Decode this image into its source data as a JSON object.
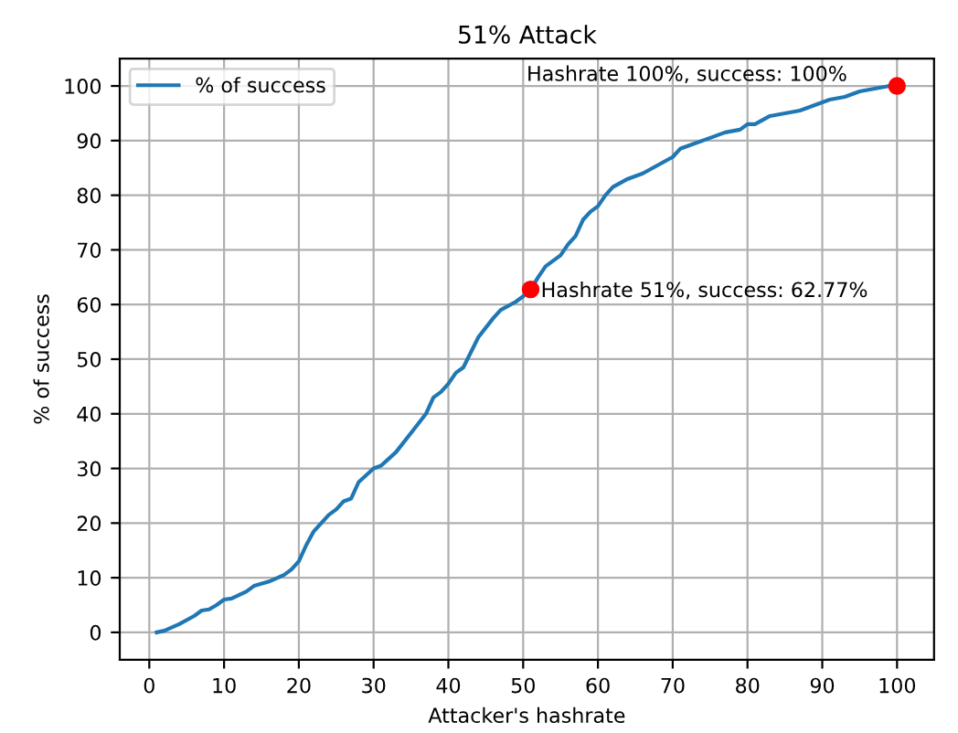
{
  "chart_data": {
    "type": "line",
    "title": "51% Attack",
    "xlabel": "Attacker's hashrate",
    "ylabel": "% of success",
    "xlim": [
      -3.95,
      104.95
    ],
    "ylim": [
      -5,
      105
    ],
    "xticks": [
      0,
      10,
      20,
      30,
      40,
      50,
      60,
      70,
      80,
      90,
      100
    ],
    "yticks": [
      0,
      10,
      20,
      30,
      40,
      50,
      60,
      70,
      80,
      90,
      100
    ],
    "grid": true,
    "legend": "top left",
    "series": [
      {
        "name": "% of success",
        "color": "#1f77b4",
        "x": [
          1,
          2,
          4,
          6,
          7,
          8,
          9,
          10,
          11,
          13,
          14,
          16,
          18,
          19,
          20,
          21,
          22,
          23,
          24,
          25,
          26,
          27,
          28,
          30,
          31,
          33,
          35,
          37,
          38,
          39,
          40,
          41,
          42,
          44,
          46,
          47,
          49,
          50,
          51,
          52,
          53,
          55,
          56,
          57,
          58,
          59,
          60,
          61,
          62,
          64,
          66,
          68,
          70,
          71,
          73,
          75,
          77,
          79,
          80,
          81,
          83,
          85,
          87,
          89,
          91,
          93,
          95,
          97,
          99,
          100
        ],
        "values": [
          0,
          0.3,
          1.5,
          3,
          4,
          4.2,
          5,
          6,
          6.2,
          7.5,
          8.5,
          9.3,
          10.5,
          11.5,
          13,
          16,
          18.5,
          20,
          21.5,
          22.5,
          24,
          24.5,
          27.5,
          30,
          30.5,
          33,
          36.5,
          40,
          43,
          44,
          45.5,
          47.5,
          48.5,
          54,
          57.5,
          59,
          60.5,
          61.5,
          62.77,
          65,
          67,
          69,
          71,
          72.5,
          75.5,
          77,
          78,
          80,
          81.5,
          83,
          84,
          85.5,
          87,
          88.5,
          89.5,
          90.5,
          91.5,
          92,
          93,
          93,
          94.5,
          95,
          95.5,
          96.5,
          97.5,
          98,
          99,
          99.5,
          100,
          100
        ]
      },
      {
        "color": "#ff0000",
        "type": "scatter",
        "x": [
          51,
          100
        ],
        "values": [
          62.77,
          100
        ]
      }
    ],
    "annotations": [
      {
        "text": "Hashrate 51%, success: 62.77%",
        "x": 51,
        "y": 62.77
      },
      {
        "text": "Hashrate 100%, success: 100%",
        "x": 100,
        "y": 100
      }
    ]
  }
}
